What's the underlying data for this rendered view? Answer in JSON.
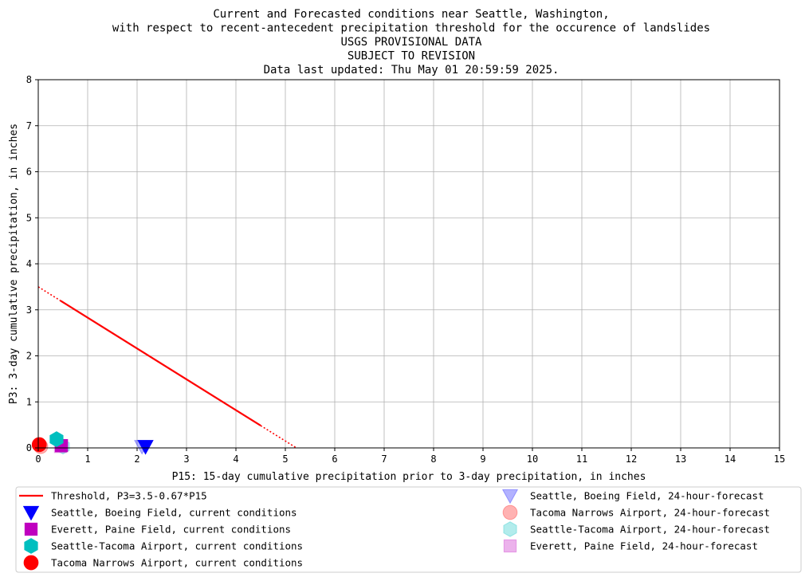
{
  "chart_data": {
    "type": "scatter",
    "title_lines": [
      "Current and Forecasted conditions near Seattle, Washington,",
      "with respect to recent-antecedent precipitation threshold for the occurence of landslides",
      "USGS PROVISIONAL DATA",
      "SUBJECT TO REVISION",
      "Data last updated: Thu May 01 20:59:59 2025."
    ],
    "xlabel": "P15: 15-day cumulative precipitation prior to 3-day precipitation, in inches",
    "ylabel": "P3: 3-day cumulative precipitation, in inches",
    "xlim": [
      0,
      15
    ],
    "ylim": [
      0,
      8
    ],
    "xticks": [
      0,
      1,
      2,
      3,
      4,
      5,
      6,
      7,
      8,
      9,
      10,
      11,
      12,
      13,
      14,
      15
    ],
    "yticks": [
      0,
      1,
      2,
      3,
      4,
      5,
      6,
      7,
      8
    ],
    "grid": true,
    "legend_position": "bottom",
    "threshold": {
      "name": "Threshold, P3=3.5-0.67*P15",
      "intercept": 3.5,
      "slope": -0.67,
      "solid_range": [
        0.45,
        4.5
      ],
      "dotted_ranges": [
        [
          0,
          0.45
        ],
        [
          4.5,
          5.22
        ]
      ],
      "color": "#ff0000"
    },
    "series": [
      {
        "name": "Seattle, Boeing Field, current conditions",
        "marker": "triangle-down",
        "color": "#0000ff",
        "alpha": 1,
        "x": 2.17,
        "y": 0.03
      },
      {
        "name": "Everett, Paine Field, current conditions",
        "marker": "square",
        "color": "#bf00bf",
        "alpha": 1,
        "x": 0.47,
        "y": 0.05
      },
      {
        "name": "Seattle-Tacoma Airport, current conditions",
        "marker": "hexagon",
        "color": "#00bfbf",
        "alpha": 1,
        "x": 0.37,
        "y": 0.19
      },
      {
        "name": "Tacoma Narrows Airport, current conditions",
        "marker": "circle",
        "color": "#ff0000",
        "alpha": 1,
        "x": 0.02,
        "y": 0.07
      },
      {
        "name": "Seattle, Boeing Field, 24-hour-forecast",
        "marker": "triangle-down",
        "color": "#0000ff",
        "alpha": 0.3,
        "x": 2.1,
        "y": 0.03
      },
      {
        "name": "Tacoma Narrows Airport, 24-hour-forecast",
        "marker": "circle",
        "color": "#ff0000",
        "alpha": 0.3,
        "x": 0.05,
        "y": 0.03
      },
      {
        "name": "Seattle-Tacoma Airport, 24-hour-forecast",
        "marker": "hexagon",
        "color": "#00bfbf",
        "alpha": 0.3,
        "x": 0.5,
        "y": 0.03
      },
      {
        "name": "Everett, Paine Field, 24-hour-forecast",
        "marker": "square",
        "color": "#bf00bf",
        "alpha": 0.3,
        "x": 0.45,
        "y": 0.03
      }
    ]
  }
}
